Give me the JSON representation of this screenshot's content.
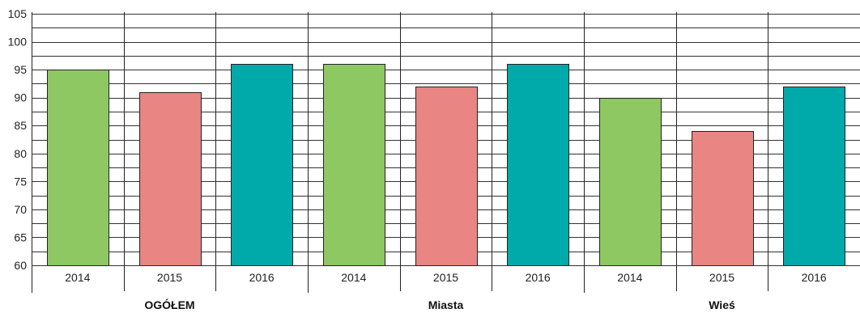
{
  "chart_data": {
    "type": "bar",
    "ylim": [
      60,
      105
    ],
    "y_ticks": [
      "60",
      "65",
      "70",
      "75",
      "80",
      "85",
      "90",
      "95",
      "100",
      "105"
    ],
    "minor_grid_step": 2.5,
    "groups": [
      {
        "label": "OGÓŁEM",
        "bars": [
          {
            "year": "2014",
            "value": 95,
            "color": "#8dc862"
          },
          {
            "year": "2015",
            "value": 91,
            "color": "#e98582"
          },
          {
            "year": "2016",
            "value": 96,
            "color": "#00a9aa"
          }
        ]
      },
      {
        "label": "Miasta",
        "bars": [
          {
            "year": "2014",
            "value": 96,
            "color": "#8dc862"
          },
          {
            "year": "2015",
            "value": 92,
            "color": "#e98582"
          },
          {
            "year": "2016",
            "value": 96,
            "color": "#00a9aa"
          }
        ]
      },
      {
        "label": "Wieś",
        "bars": [
          {
            "year": "2014",
            "value": 90,
            "color": "#8dc862"
          },
          {
            "year": "2015",
            "value": 84,
            "color": "#e98582"
          },
          {
            "year": "2016",
            "value": 92,
            "color": "#00a9aa"
          }
        ]
      }
    ]
  }
}
